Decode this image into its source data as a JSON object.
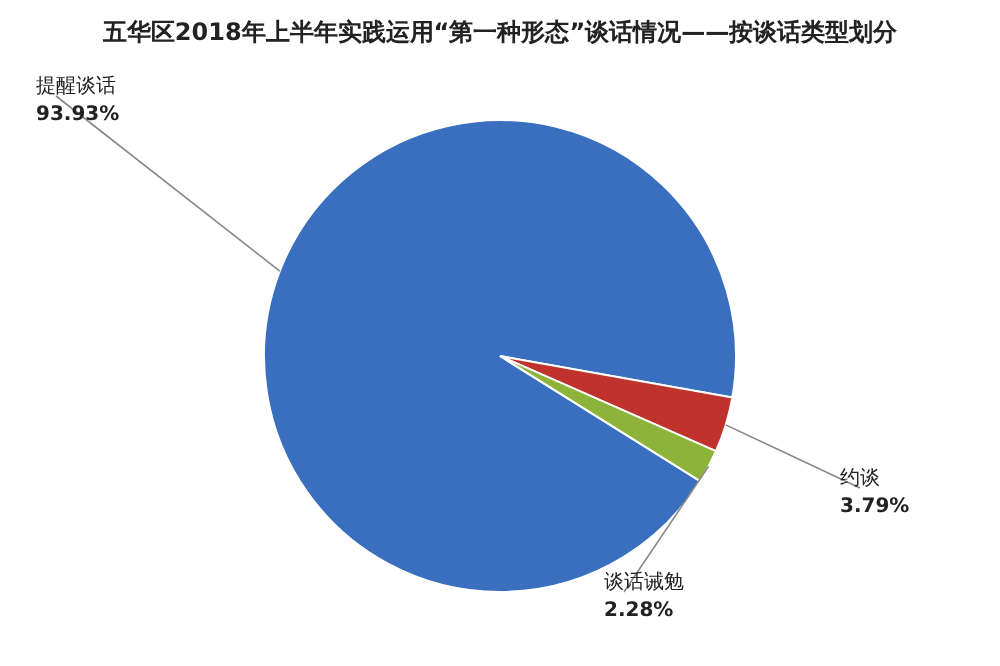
{
  "chart_data": {
    "type": "pie",
    "title": "五华区2018年上半年实践运用“第一种形态”谈话情况——按谈话类型划分",
    "categories": [
      "提醒谈话",
      "约谈",
      "谈话诫勉"
    ],
    "values": [
      93.93,
      3.79,
      2.28
    ],
    "colors": [
      "#3a6fc0",
      "#c0322c",
      "#8db33a"
    ],
    "value_labels": [
      "93.93%",
      "3.79%",
      "2.28%"
    ]
  }
}
